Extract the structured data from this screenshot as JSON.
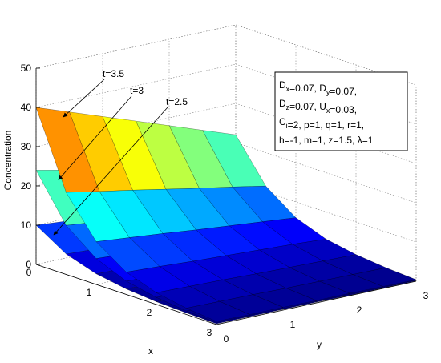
{
  "chart_data": {
    "type": "surface",
    "colormap": "jet",
    "grid": true,
    "xlabel": "x",
    "ylabel": "y",
    "zlabel": "Concentration",
    "xlim": [
      0,
      3
    ],
    "ylim": [
      0,
      3
    ],
    "zlim": [
      0,
      50
    ],
    "xticks": [
      0,
      1,
      2,
      3
    ],
    "yticks": [
      0,
      1,
      2,
      3
    ],
    "zticks": [
      0,
      10,
      20,
      30,
      40,
      50
    ],
    "x": [
      0,
      0.5,
      1,
      1.5,
      2,
      2.5,
      3
    ],
    "y": [
      0,
      0.5,
      1,
      1.5,
      2,
      2.5,
      3
    ],
    "series": [
      {
        "name": "t=2.5",
        "values": [
          [
            10,
            9.3,
            8.5,
            7.8,
            7,
            6.3,
            5.5
          ],
          [
            5.2,
            4.8,
            4.4,
            4.0,
            3.7,
            3.3,
            2.9
          ],
          [
            2.7,
            2.5,
            2.3,
            2.1,
            1.9,
            1.7,
            1.5
          ],
          [
            1.4,
            1.3,
            1.2,
            1.1,
            1.0,
            0.9,
            0.8
          ],
          [
            0.7,
            0.7,
            0.6,
            0.6,
            0.5,
            0.5,
            0.4
          ],
          [
            0.4,
            0.4,
            0.3,
            0.3,
            0.3,
            0.2,
            0.2
          ],
          [
            0.2,
            0.2,
            0.2,
            0.2,
            0.1,
            0.1,
            0.1
          ]
        ]
      },
      {
        "name": "t=3",
        "values": [
          [
            24,
            22.2,
            20.4,
            18.6,
            16.8,
            15,
            13.2
          ],
          [
            12.5,
            11.6,
            10.6,
            9.7,
            8.8,
            7.8,
            6.9
          ],
          [
            6.6,
            6.1,
            5.6,
            5.1,
            4.6,
            4.1,
            3.6
          ],
          [
            3.4,
            3.1,
            2.9,
            2.6,
            2.4,
            2.1,
            1.9
          ],
          [
            1.8,
            1.7,
            1.5,
            1.4,
            1.3,
            1.1,
            1.0
          ],
          [
            0.9,
            0.8,
            0.8,
            0.7,
            0.6,
            0.6,
            0.5
          ],
          [
            0.5,
            0.5,
            0.4,
            0.4,
            0.4,
            0.3,
            0.3
          ]
        ]
      },
      {
        "name": "t=3.5",
        "values": [
          [
            40,
            37,
            34,
            31,
            28,
            25,
            22
          ],
          [
            20.9,
            19.3,
            17.8,
            16.2,
            14.6,
            13.1,
            11.5
          ],
          [
            10.9,
            10.1,
            9.3,
            8.4,
            7.6,
            6.8,
            6.0
          ],
          [
            5.7,
            5.3,
            4.8,
            4.4,
            4.0,
            3.6,
            3.1
          ],
          [
            3.0,
            2.8,
            2.6,
            2.3,
            2.1,
            1.9,
            1.7
          ],
          [
            1.6,
            1.5,
            1.4,
            1.2,
            1.1,
            1.0,
            0.9
          ],
          [
            0.8,
            0.7,
            0.7,
            0.6,
            0.6,
            0.5,
            0.4
          ]
        ]
      }
    ],
    "textbox": [
      [
        "D",
        {
          "sub": "x"
        },
        "=0.07, D",
        {
          "sub": "y"
        },
        "=0.07,"
      ],
      [
        "D",
        {
          "sub": "z"
        },
        "=0.07, U",
        {
          "sub": "x"
        },
        "=0.03,"
      ],
      [
        "C",
        {
          "sub": "i"
        },
        "=2, p=1, q=1, r=1,"
      ],
      [
        "h=-1, m=1, z=1.5, λ=1"
      ]
    ]
  }
}
